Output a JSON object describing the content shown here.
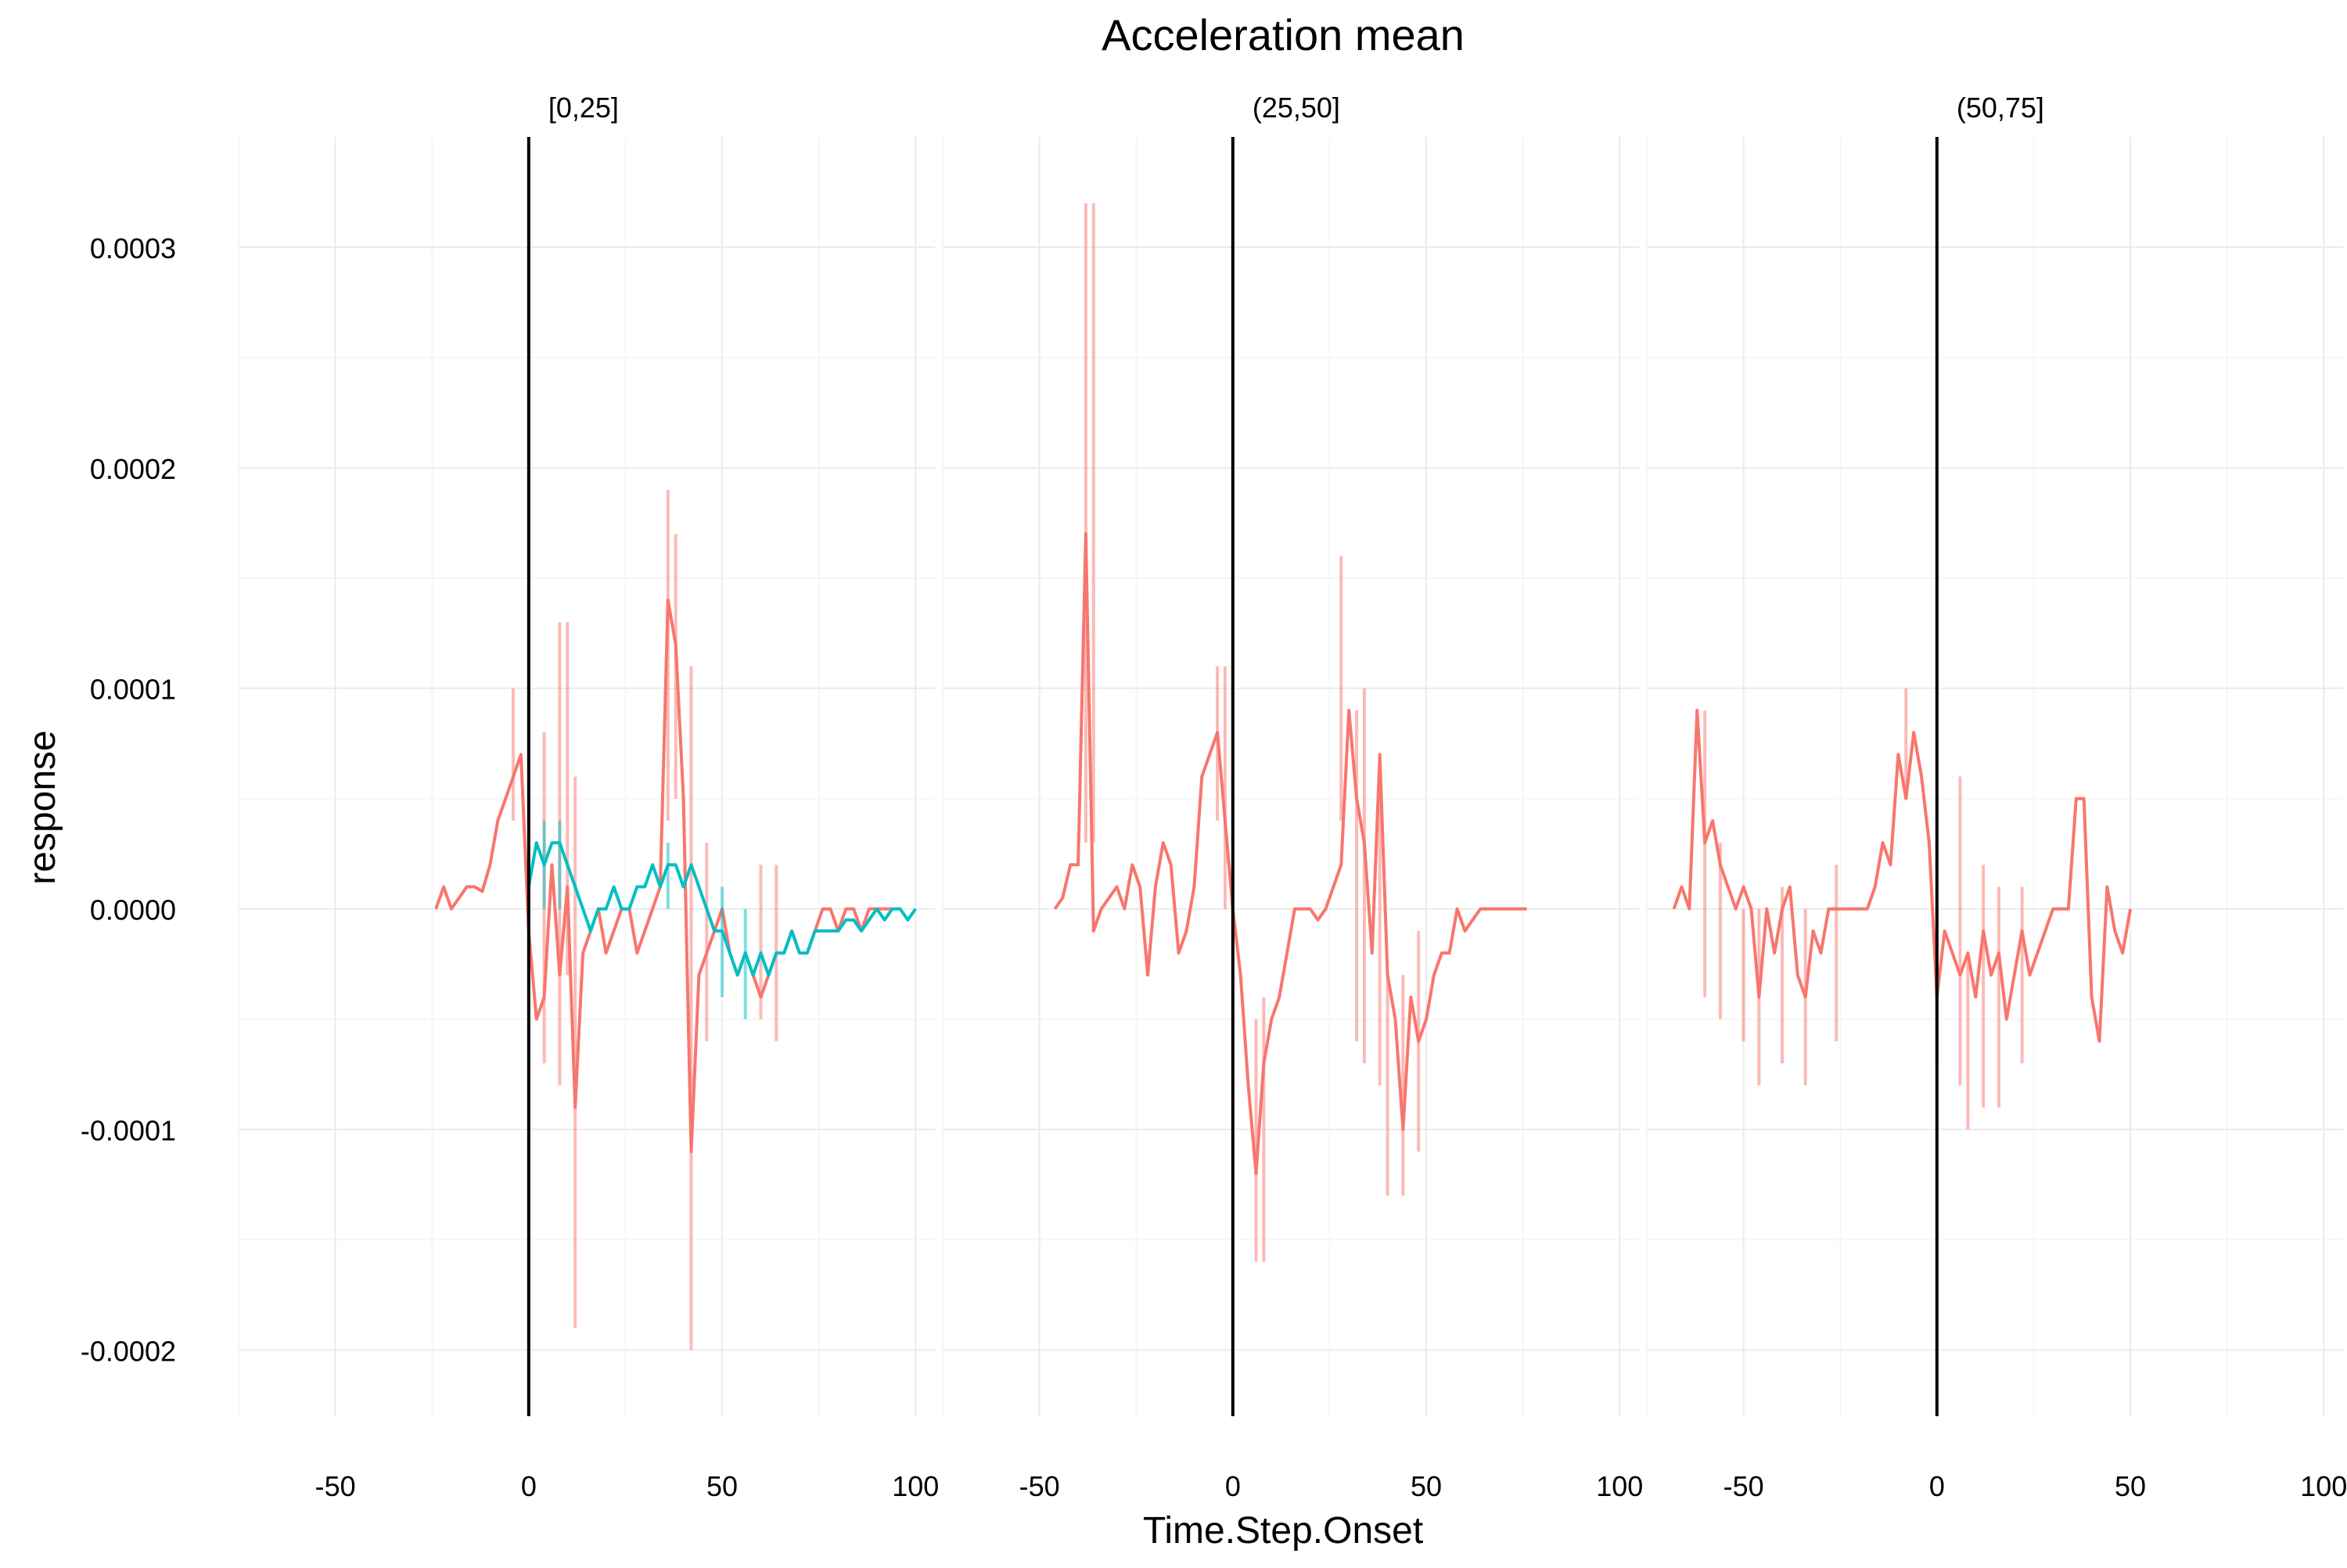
{
  "chart_data": {
    "type": "line",
    "title": "Acceleration mean",
    "xlabel": "Time.Step.Onset",
    "ylabel": "response",
    "xlim": [
      -75,
      105
    ],
    "ylim": [
      -0.00023,
      0.00035
    ],
    "x_ticks": [
      -50,
      0,
      50,
      100
    ],
    "y_ticks": [
      -0.0002,
      -0.0001,
      0.0,
      0.0001,
      0.0002,
      0.0003
    ],
    "x_tick_labels": [
      "-50",
      "0",
      "50",
      "100"
    ],
    "y_tick_labels": [
      "-0.0002",
      "-0.0001",
      "0.0000",
      "0.0001",
      "0.0002",
      "0.0003"
    ],
    "grid": true,
    "legend": "none",
    "vline_x": 0,
    "colors": {
      "red": "#F8766D",
      "teal": "#00BFC4",
      "vline": "#000000"
    },
    "panels": [
      {
        "label": "[0,25]",
        "series": [
          {
            "color": "#F8766D",
            "x": [
              -24,
              -22,
              -20,
              -18,
              -16,
              -14,
              -12,
              -10,
              -8,
              -6,
              -4,
              -2,
              0,
              2,
              4,
              6,
              8,
              10,
              12,
              14,
              16,
              18,
              20,
              22,
              24,
              26,
              28,
              30,
              32,
              34,
              36,
              38,
              40,
              42,
              44,
              46,
              48,
              50,
              52,
              54,
              56,
              58,
              60,
              62,
              64,
              66,
              68,
              70,
              72,
              74,
              76,
              78,
              80,
              82,
              84,
              86,
              88,
              90,
              92,
              94
            ],
            "y": [
              0.0,
              1e-05,
              0.0,
              5e-06,
              1e-05,
              1e-05,
              8e-06,
              2e-05,
              4e-05,
              5e-05,
              6e-05,
              7e-05,
              -1e-05,
              -5e-05,
              -4e-05,
              2e-05,
              -3e-05,
              1e-05,
              -9e-05,
              -2e-05,
              -1e-05,
              0.0,
              -2e-05,
              -1e-05,
              0.0,
              0.0,
              -2e-05,
              -1e-05,
              0.0,
              1e-05,
              0.00014,
              0.00012,
              5e-05,
              -0.00011,
              -3e-05,
              -2e-05,
              -1e-05,
              0.0,
              -2e-05,
              -3e-05,
              -2e-05,
              -3e-05,
              -4e-05,
              -3e-05,
              -2e-05,
              -2e-05,
              -1e-05,
              -2e-05,
              -2e-05,
              -1e-05,
              0.0,
              0.0,
              -1e-05,
              0.0,
              0.0,
              -1e-05,
              0.0,
              0.0,
              0.0,
              0.0
            ],
            "spikes": [
              [
                -4,
                4e-05,
                0.0001
              ],
              [
                4,
                -7e-05,
                8e-05
              ],
              [
                8,
                -8e-05,
                0.00013
              ],
              [
                10,
                -3e-05,
                0.00013
              ],
              [
                12,
                -0.00019,
                6e-05
              ],
              [
                36,
                4e-05,
                0.00019
              ],
              [
                38,
                5e-05,
                0.00017
              ],
              [
                42,
                -0.0002,
                0.00011
              ],
              [
                46,
                -6e-05,
                3e-05
              ],
              [
                60,
                -5e-05,
                2e-05
              ],
              [
                64,
                -6e-05,
                2e-05
              ]
            ]
          },
          {
            "color": "#00BFC4",
            "x": [
              0,
              2,
              4,
              6,
              8,
              10,
              12,
              14,
              16,
              18,
              20,
              22,
              24,
              26,
              28,
              30,
              32,
              34,
              36,
              38,
              40,
              42,
              44,
              46,
              48,
              50,
              52,
              54,
              56,
              58,
              60,
              62,
              64,
              66,
              68,
              70,
              72,
              74,
              76,
              78,
              80,
              82,
              84,
              86,
              88,
              90,
              92,
              94,
              96,
              98,
              100
            ],
            "y": [
              1e-05,
              3e-05,
              2e-05,
              3e-05,
              3e-05,
              2e-05,
              1e-05,
              0.0,
              -1e-05,
              0.0,
              0.0,
              1e-05,
              0.0,
              0.0,
              1e-05,
              1e-05,
              2e-05,
              1e-05,
              2e-05,
              2e-05,
              1e-05,
              2e-05,
              1e-05,
              0.0,
              -1e-05,
              -1e-05,
              -2e-05,
              -3e-05,
              -2e-05,
              -3e-05,
              -2e-05,
              -3e-05,
              -2e-05,
              -2e-05,
              -1e-05,
              -2e-05,
              -2e-05,
              -1e-05,
              -1e-05,
              -1e-05,
              -1e-05,
              -5e-06,
              -5e-06,
              -1e-05,
              -5e-06,
              0.0,
              -5e-06,
              0.0,
              0.0,
              -5e-06,
              0.0
            ],
            "spikes": [
              [
                4,
                0.0,
                4e-05
              ],
              [
                8,
                0.0,
                4e-05
              ],
              [
                36,
                0.0,
                3e-05
              ],
              [
                50,
                -4e-05,
                1e-05
              ],
              [
                56,
                -5e-05,
                0.0
              ]
            ]
          }
        ]
      },
      {
        "label": "(25,50]",
        "series": [
          {
            "color": "#F8766D",
            "x": [
              -46,
              -44,
              -42,
              -40,
              -38,
              -36,
              -34,
              -32,
              -30,
              -28,
              -26,
              -24,
              -22,
              -20,
              -18,
              -16,
              -14,
              -12,
              -10,
              -8,
              -6,
              -4,
              -2,
              0,
              2,
              4,
              6,
              8,
              10,
              12,
              14,
              16,
              18,
              20,
              22,
              24,
              26,
              28,
              30,
              32,
              34,
              36,
              38,
              40,
              42,
              44,
              46,
              48,
              50,
              52,
              54,
              56,
              58,
              60,
              62,
              64,
              66,
              68,
              70,
              72,
              74,
              76
            ],
            "y": [
              0.0,
              5e-06,
              2e-05,
              2e-05,
              0.00017,
              -1e-05,
              0.0,
              5e-06,
              1e-05,
              0.0,
              2e-05,
              1e-05,
              -3e-05,
              1e-05,
              3e-05,
              2e-05,
              -2e-05,
              -1e-05,
              1e-05,
              6e-05,
              7e-05,
              8e-05,
              4e-05,
              0.0,
              -3e-05,
              -8e-05,
              -0.00012,
              -7e-05,
              -5e-05,
              -4e-05,
              -2e-05,
              0.0,
              0.0,
              0.0,
              -5e-06,
              0.0,
              1e-05,
              2e-05,
              9e-05,
              5e-05,
              3e-05,
              -2e-05,
              7e-05,
              -3e-05,
              -5e-05,
              -0.0001,
              -4e-05,
              -6e-05,
              -5e-05,
              -3e-05,
              -2e-05,
              -2e-05,
              0.0,
              -1e-05,
              -5e-06,
              0.0,
              0.0,
              0.0,
              0.0,
              0.0,
              0.0,
              0.0
            ],
            "spikes": [
              [
                -38,
                3e-05,
                0.00032
              ],
              [
                -36,
                3e-05,
                0.00032
              ],
              [
                -4,
                4e-05,
                0.00011
              ],
              [
                -2,
                0.0,
                0.00011
              ],
              [
                6,
                -0.00016,
                -5e-05
              ],
              [
                8,
                -0.00016,
                -4e-05
              ],
              [
                28,
                4e-05,
                0.00016
              ],
              [
                32,
                -6e-05,
                9e-05
              ],
              [
                34,
                -7e-05,
                0.0001
              ],
              [
                38,
                -8e-05,
                6e-05
              ],
              [
                40,
                -0.00013,
                -3e-05
              ],
              [
                44,
                -0.00013,
                -3e-05
              ],
              [
                48,
                -0.00011,
                -1e-05
              ]
            ]
          }
        ]
      },
      {
        "label": "(50,75]",
        "series": [
          {
            "color": "#F8766D",
            "x": [
              -68,
              -66,
              -64,
              -62,
              -60,
              -58,
              -56,
              -54,
              -52,
              -50,
              -48,
              -46,
              -44,
              -42,
              -40,
              -38,
              -36,
              -34,
              -32,
              -30,
              -28,
              -26,
              -24,
              -22,
              -20,
              -18,
              -16,
              -14,
              -12,
              -10,
              -8,
              -6,
              -4,
              -2,
              0,
              2,
              4,
              6,
              8,
              10,
              12,
              14,
              16,
              18,
              20,
              22,
              24,
              26,
              28,
              30,
              32,
              34,
              36,
              38,
              40,
              42,
              44,
              46,
              48,
              50
            ],
            "y": [
              0.0,
              1e-05,
              0.0,
              9e-05,
              3e-05,
              4e-05,
              2e-05,
              1e-05,
              0.0,
              1e-05,
              0.0,
              -4e-05,
              0.0,
              -2e-05,
              0.0,
              1e-05,
              -3e-05,
              -4e-05,
              -1e-05,
              -2e-05,
              0.0,
              0.0,
              0.0,
              0.0,
              0.0,
              0.0,
              1e-05,
              3e-05,
              2e-05,
              7e-05,
              5e-05,
              8e-05,
              6e-05,
              3e-05,
              -4e-05,
              -1e-05,
              -2e-05,
              -3e-05,
              -2e-05,
              -4e-05,
              -1e-05,
              -3e-05,
              -2e-05,
              -5e-05,
              -3e-05,
              -1e-05,
              -3e-05,
              -2e-05,
              -1e-05,
              0.0,
              0.0,
              0.0,
              5e-05,
              5e-05,
              -4e-05,
              -6e-05,
              1e-05,
              -1e-05,
              -2e-05,
              0.0
            ],
            "spikes": [
              [
                -60,
                -4e-05,
                9e-05
              ],
              [
                -56,
                -5e-05,
                3e-05
              ],
              [
                -50,
                -6e-05,
                0.0
              ],
              [
                -46,
                -8e-05,
                0.0
              ],
              [
                -40,
                -7e-05,
                1e-05
              ],
              [
                -34,
                -8e-05,
                0.0
              ],
              [
                -26,
                -6e-05,
                2e-05
              ],
              [
                -8,
                5e-05,
                0.0001
              ],
              [
                0,
                -7e-05,
                0.0
              ],
              [
                6,
                -8e-05,
                6e-05
              ],
              [
                8,
                -0.0001,
                -2e-05
              ],
              [
                12,
                -9e-05,
                2e-05
              ],
              [
                16,
                -9e-05,
                1e-05
              ],
              [
                22,
                -7e-05,
                1e-05
              ]
            ]
          }
        ]
      }
    ]
  }
}
